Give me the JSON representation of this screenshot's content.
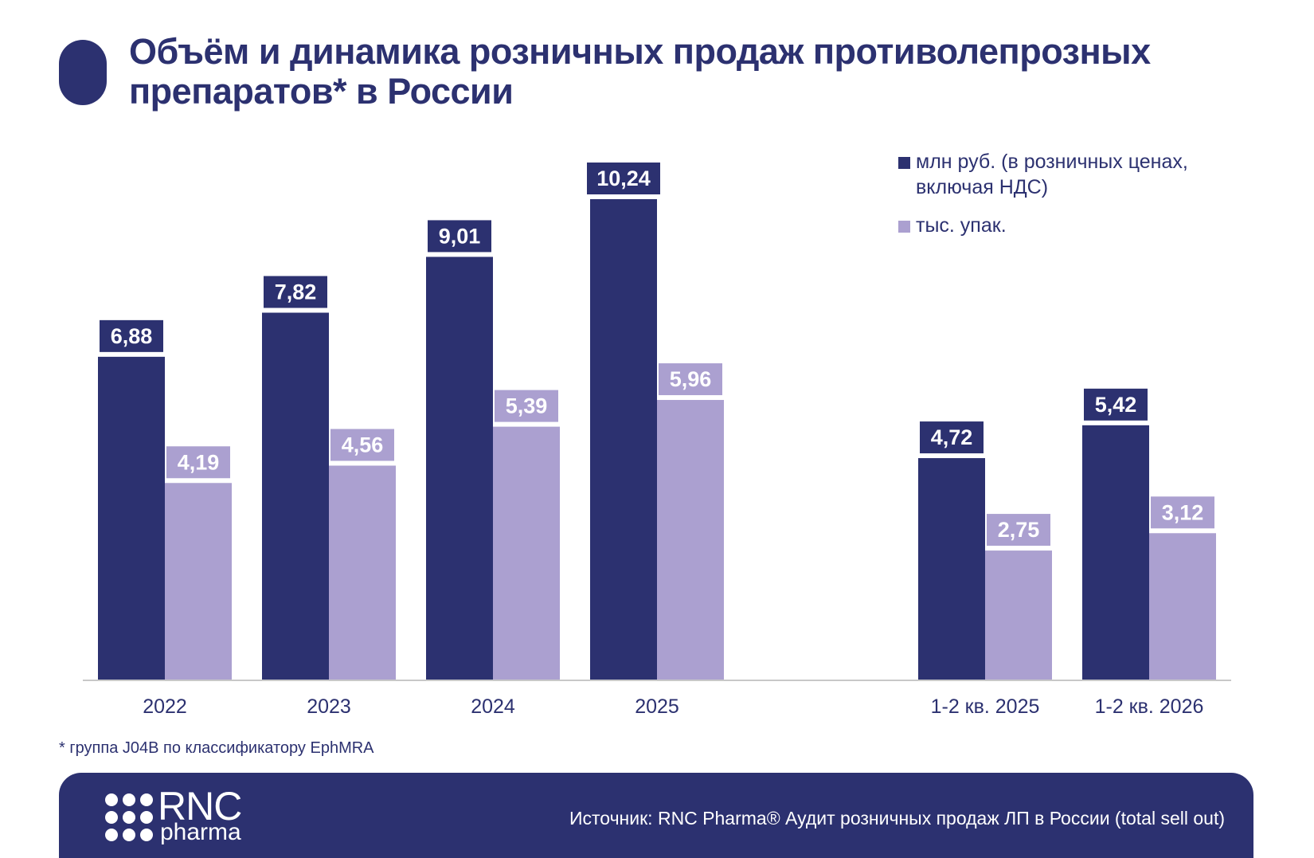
{
  "title": "Объём и динамика розничных продаж противолепрозных препаратов* в России",
  "footnote": "* группа J04B по классификатору EphMRA",
  "source": "Источник: RNC Pharma® Аудит розничных продаж ЛП в России (total sell out)",
  "logo": {
    "main": "RNC",
    "sub": "pharma"
  },
  "colors": {
    "brand": "#2c3170",
    "series_rub": "#2c3170",
    "series_packs": "#aba0d0",
    "axis": "#c8c8c8"
  },
  "chart_data": {
    "type": "bar",
    "categories": [
      "2022",
      "2023",
      "2024",
      "2025",
      "1-2 кв. 2025",
      "1-2 кв. 2026"
    ],
    "series": [
      {
        "name": "млн руб. (в розничных ценах, включая НДС)",
        "color": "#2c3170",
        "values": [
          6.88,
          7.82,
          9.01,
          10.24,
          4.72,
          5.42
        ],
        "labels": [
          "6,88",
          "7,82",
          "9,01",
          "10,24",
          "4,72",
          "5,42"
        ]
      },
      {
        "name": "тыс. упак.",
        "color": "#aba0d0",
        "values": [
          4.19,
          4.56,
          5.39,
          5.96,
          2.75,
          3.12
        ],
        "labels": [
          "4,19",
          "4,56",
          "5,39",
          "5,96",
          "2,75",
          "3,12"
        ]
      }
    ],
    "title": "Объём и динамика розничных продаж противолепрозных препаратов* в России",
    "xlabel": "",
    "ylabel": "",
    "ylim": [
      0,
      10.24
    ],
    "grid": false,
    "legend": "top-right",
    "data_labels": true,
    "category_gap_after": "2025"
  }
}
